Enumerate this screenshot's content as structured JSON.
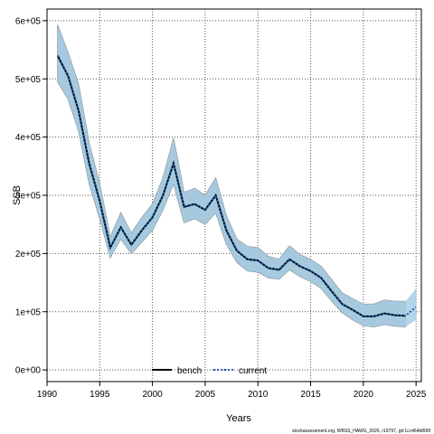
{
  "chart_data": {
    "type": "line",
    "xlabel": "Years",
    "ylabel": "SSB",
    "xlim": [
      1990,
      2025.5
    ],
    "ylim": [
      -20000,
      620000
    ],
    "xticks": [
      1990,
      1995,
      2000,
      2005,
      2010,
      2015,
      2020,
      2025
    ],
    "yticks": [
      0,
      100000,
      200000,
      300000,
      400000,
      500000,
      600000
    ],
    "ytick_labels": [
      "0e+00",
      "1e+05",
      "2e+05",
      "3e+05",
      "4e+05",
      "5e+05",
      "6e+05"
    ],
    "grid": true,
    "legend_position": "bottom-center",
    "legend": [
      {
        "name": "bench",
        "color": "#000000",
        "style": "solid"
      },
      {
        "name": "current",
        "color": "#1a5fa8",
        "style": "dashed"
      }
    ],
    "x": [
      1991,
      1992,
      1993,
      1994,
      1995,
      1996,
      1997,
      1998,
      1999,
      2000,
      2001,
      2002,
      2003,
      2004,
      2005,
      2006,
      2007,
      2008,
      2009,
      2010,
      2011,
      2012,
      2013,
      2014,
      2015,
      2016,
      2017,
      2018,
      2019,
      2020,
      2021,
      2022,
      2023,
      2024,
      2025
    ],
    "series": [
      {
        "name": "bench",
        "color": "#000000",
        "values": [
          540000,
          505000,
          445000,
          355000,
          290000,
          210000,
          245000,
          215000,
          240000,
          262000,
          300000,
          355000,
          280000,
          285000,
          275000,
          300000,
          240000,
          205000,
          190000,
          188000,
          175000,
          172000,
          190000,
          178000,
          170000,
          158000,
          135000,
          113000,
          103000,
          92000,
          92000,
          97000,
          94000,
          93000,
          108000
        ],
        "lower": [
          495000,
          465000,
          410000,
          320000,
          260000,
          193000,
          225000,
          200000,
          220000,
          240000,
          275000,
          320000,
          253000,
          260000,
          250000,
          270000,
          216000,
          185000,
          170000,
          168000,
          158000,
          156000,
          172000,
          160000,
          152000,
          140000,
          118000,
          98000,
          86000,
          76000,
          74000,
          78000,
          75000,
          74000,
          86000
        ],
        "upper": [
          593000,
          545000,
          490000,
          390000,
          320000,
          228000,
          270000,
          235000,
          262000,
          285000,
          330000,
          398000,
          305000,
          312000,
          300000,
          330000,
          265000,
          225000,
          212000,
          210000,
          195000,
          190000,
          213000,
          198000,
          190000,
          178000,
          155000,
          132000,
          122000,
          113000,
          113000,
          120000,
          118000,
          118000,
          140000
        ]
      },
      {
        "name": "current",
        "color": "#1a5fa8",
        "values": [
          540000,
          505000,
          445000,
          355000,
          290000,
          210000,
          245000,
          215000,
          240000,
          262000,
          300000,
          355000,
          280000,
          285000,
          275000,
          300000,
          240000,
          205000,
          190000,
          188000,
          175000,
          172000,
          190000,
          178000,
          170000,
          158000,
          135000,
          113000,
          103000,
          92000,
          92000,
          97000,
          94000,
          93000,
          108000
        ]
      }
    ]
  },
  "footer": "stockassessment.org, WBSS_HAWG_2026, r19797, git:1cc464b806f"
}
